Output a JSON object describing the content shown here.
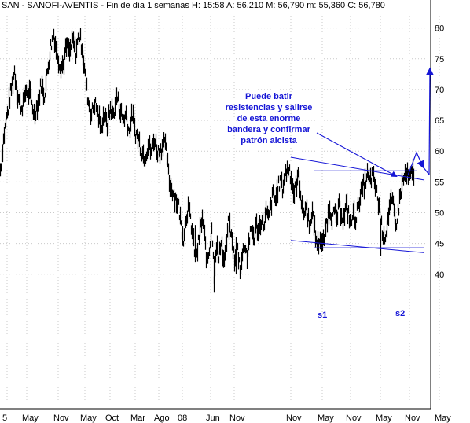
{
  "header": {
    "symbol": "SAN",
    "name": "SANOFI-AVENTIS",
    "period": "Fin de día 1 semanas",
    "h_label": "H:",
    "h_value": "15:58",
    "a_label": "A:",
    "a_value": "56,210",
    "mx_label": "M:",
    "mx_value": "56,790",
    "mn_label": "m:",
    "mn_value": "55,360",
    "c_label": "C:",
    "c_value": "56,780"
  },
  "chart_data": {
    "type": "line",
    "title": "",
    "xlabel": "",
    "ylabel": "",
    "ylim": [
      33.5,
      82
    ],
    "y_ticks": [
      "80",
      "75",
      "70",
      "65",
      "60",
      "55",
      "50",
      "45",
      "40"
    ],
    "y_tick_values": [
      80,
      75,
      70,
      65,
      60,
      55,
      50,
      45,
      40
    ],
    "x_ticks": [
      "5",
      "May",
      "Nov",
      "May",
      "Oct",
      "Mar",
      "Ago",
      "08",
      "Jun",
      "Nov",
      "Nov",
      "May",
      "Nov",
      "May",
      "Nov",
      "May"
    ],
    "grid": true,
    "legend": "none",
    "price_series": [
      {
        "i": 0,
        "v": 57
      },
      {
        "i": 5,
        "v": 63
      },
      {
        "i": 10,
        "v": 67
      },
      {
        "i": 15,
        "v": 71
      },
      {
        "i": 18,
        "v": 73
      },
      {
        "i": 22,
        "v": 69
      },
      {
        "i": 27,
        "v": 67
      },
      {
        "i": 33,
        "v": 70
      },
      {
        "i": 38,
        "v": 69
      },
      {
        "i": 43,
        "v": 66
      },
      {
        "i": 48,
        "v": 68
      },
      {
        "i": 52,
        "v": 71
      },
      {
        "i": 56,
        "v": 69
      },
      {
        "i": 60,
        "v": 73
      },
      {
        "i": 64,
        "v": 77
      },
      {
        "i": 68,
        "v": 79
      },
      {
        "i": 72,
        "v": 76
      },
      {
        "i": 76,
        "v": 74
      },
      {
        "i": 80,
        "v": 74
      },
      {
        "i": 84,
        "v": 77
      },
      {
        "i": 88,
        "v": 76
      },
      {
        "i": 92,
        "v": 78
      },
      {
        "i": 96,
        "v": 76
      },
      {
        "i": 100,
        "v": 79
      },
      {
        "i": 104,
        "v": 77
      },
      {
        "i": 108,
        "v": 72
      },
      {
        "i": 112,
        "v": 68
      },
      {
        "i": 116,
        "v": 66
      },
      {
        "i": 120,
        "v": 68
      },
      {
        "i": 124,
        "v": 66
      },
      {
        "i": 128,
        "v": 64
      },
      {
        "i": 132,
        "v": 66
      },
      {
        "i": 136,
        "v": 64
      },
      {
        "i": 140,
        "v": 67
      },
      {
        "i": 144,
        "v": 66
      },
      {
        "i": 148,
        "v": 69
      },
      {
        "i": 152,
        "v": 67
      },
      {
        "i": 156,
        "v": 65
      },
      {
        "i": 160,
        "v": 66
      },
      {
        "i": 164,
        "v": 63
      },
      {
        "i": 168,
        "v": 66
      },
      {
        "i": 172,
        "v": 63
      },
      {
        "i": 176,
        "v": 62
      },
      {
        "i": 180,
        "v": 60
      },
      {
        "i": 184,
        "v": 59
      },
      {
        "i": 188,
        "v": 61
      },
      {
        "i": 192,
        "v": 60
      },
      {
        "i": 196,
        "v": 62
      },
      {
        "i": 200,
        "v": 60
      },
      {
        "i": 204,
        "v": 60
      },
      {
        "i": 208,
        "v": 62
      },
      {
        "i": 212,
        "v": 59
      },
      {
        "i": 215,
        "v": 55
      },
      {
        "i": 218,
        "v": 54
      },
      {
        "i": 221,
        "v": 53
      },
      {
        "i": 224,
        "v": 52
      },
      {
        "i": 227,
        "v": 51
      },
      {
        "i": 230,
        "v": 48
      },
      {
        "i": 233,
        "v": 46
      },
      {
        "i": 236,
        "v": 49
      },
      {
        "i": 239,
        "v": 51
      },
      {
        "i": 242,
        "v": 49
      },
      {
        "i": 245,
        "v": 46
      },
      {
        "i": 248,
        "v": 43
      },
      {
        "i": 251,
        "v": 44
      },
      {
        "i": 254,
        "v": 47
      },
      {
        "i": 257,
        "v": 49
      },
      {
        "i": 260,
        "v": 46
      },
      {
        "i": 263,
        "v": 42
      },
      {
        "i": 266,
        "v": 44
      },
      {
        "i": 269,
        "v": 48
      },
      {
        "i": 272,
        "v": 40
      },
      {
        "i": 275,
        "v": 45
      },
      {
        "i": 278,
        "v": 42
      },
      {
        "i": 281,
        "v": 46
      },
      {
        "i": 284,
        "v": 42
      },
      {
        "i": 287,
        "v": 44
      },
      {
        "i": 290,
        "v": 48
      },
      {
        "i": 293,
        "v": 47
      },
      {
        "i": 296,
        "v": 44
      },
      {
        "i": 299,
        "v": 42
      },
      {
        "i": 302,
        "v": 44
      },
      {
        "i": 305,
        "v": 41
      },
      {
        "i": 308,
        "v": 43
      },
      {
        "i": 311,
        "v": 45
      },
      {
        "i": 314,
        "v": 43
      },
      {
        "i": 317,
        "v": 46
      },
      {
        "i": 320,
        "v": 47
      },
      {
        "i": 323,
        "v": 46
      },
      {
        "i": 326,
        "v": 48
      },
      {
        "i": 329,
        "v": 47
      },
      {
        "i": 332,
        "v": 49
      },
      {
        "i": 335,
        "v": 48
      },
      {
        "i": 338,
        "v": 50
      },
      {
        "i": 341,
        "v": 49
      },
      {
        "i": 344,
        "v": 51
      },
      {
        "i": 347,
        "v": 53
      },
      {
        "i": 350,
        "v": 52
      },
      {
        "i": 353,
        "v": 54
      },
      {
        "i": 356,
        "v": 55
      },
      {
        "i": 359,
        "v": 54
      },
      {
        "i": 362,
        "v": 56
      },
      {
        "i": 365,
        "v": 57
      },
      {
        "i": 368,
        "v": 57
      },
      {
        "i": 371,
        "v": 55
      },
      {
        "i": 374,
        "v": 53
      },
      {
        "i": 377,
        "v": 55
      },
      {
        "i": 380,
        "v": 56
      },
      {
        "i": 383,
        "v": 52
      },
      {
        "i": 386,
        "v": 50
      },
      {
        "i": 389,
        "v": 51
      },
      {
        "i": 392,
        "v": 49
      },
      {
        "i": 395,
        "v": 48
      },
      {
        "i": 398,
        "v": 50
      },
      {
        "i": 401,
        "v": 46
      },
      {
        "i": 404,
        "v": 45
      },
      {
        "i": 407,
        "v": 46
      },
      {
        "i": 410,
        "v": 44.5
      },
      {
        "i": 413,
        "v": 47
      },
      {
        "i": 416,
        "v": 49
      },
      {
        "i": 419,
        "v": 51
      },
      {
        "i": 422,
        "v": 49
      },
      {
        "i": 425,
        "v": 50
      },
      {
        "i": 428,
        "v": 49
      },
      {
        "i": 431,
        "v": 51
      },
      {
        "i": 434,
        "v": 50
      },
      {
        "i": 437,
        "v": 49
      },
      {
        "i": 440,
        "v": 51
      },
      {
        "i": 443,
        "v": 50
      },
      {
        "i": 446,
        "v": 48
      },
      {
        "i": 449,
        "v": 50
      },
      {
        "i": 452,
        "v": 49
      },
      {
        "i": 455,
        "v": 51
      },
      {
        "i": 458,
        "v": 53
      },
      {
        "i": 461,
        "v": 54
      },
      {
        "i": 464,
        "v": 55
      },
      {
        "i": 467,
        "v": 56
      },
      {
        "i": 470,
        "v": 55
      },
      {
        "i": 473,
        "v": 56
      },
      {
        "i": 476,
        "v": 55
      },
      {
        "i": 479,
        "v": 53
      },
      {
        "i": 482,
        "v": 51
      },
      {
        "i": 485,
        "v": 48
      },
      {
        "i": 488,
        "v": 46
      },
      {
        "i": 491,
        "v": 47
      },
      {
        "i": 494,
        "v": 50
      },
      {
        "i": 497,
        "v": 52
      },
      {
        "i": 500,
        "v": 51
      },
      {
        "i": 503,
        "v": 48
      },
      {
        "i": 506,
        "v": 50
      },
      {
        "i": 509,
        "v": 53
      },
      {
        "i": 512,
        "v": 55
      },
      {
        "i": 515,
        "v": 56
      },
      {
        "i": 518,
        "v": 56
      },
      {
        "i": 521,
        "v": 55.5
      },
      {
        "i": 524,
        "v": 56.5
      },
      {
        "i": 527,
        "v": 56.8
      }
    ],
    "lines": [
      {
        "name": "resistance-upper",
        "from": [
          370,
          59
        ],
        "to": [
          540,
          55.3
        ]
      },
      {
        "name": "resistance-horizontal",
        "from": [
          400,
          56.8
        ],
        "to": [
          530,
          56.8
        ]
      },
      {
        "name": "support-lower",
        "from": [
          370,
          45.5
        ],
        "to": [
          540,
          43.5
        ]
      },
      {
        "name": "support-horizontal",
        "from": [
          400,
          44.3
        ],
        "to": [
          540,
          44.3
        ]
      }
    ],
    "labels": [
      "s1",
      "s2"
    ],
    "annotation": [
      "Puede batir",
      "resistencias y salirse",
      "de esta enorme",
      "bandera y confirmar",
      "patrón alcista"
    ]
  },
  "colors": {
    "price": "#000000",
    "annotation": "#1515d6",
    "grid": "#c9c9c9"
  }
}
